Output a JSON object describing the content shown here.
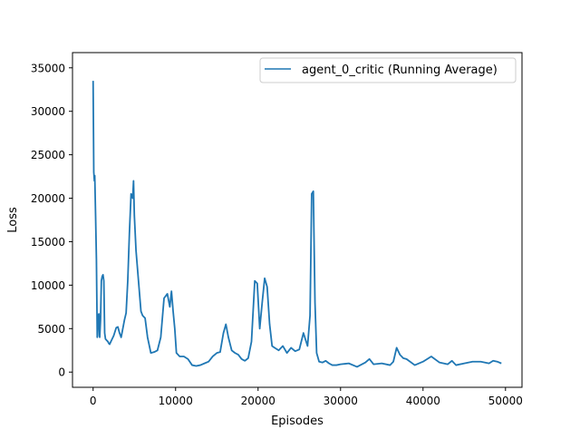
{
  "chart_data": {
    "type": "line",
    "title": "",
    "xlabel": "Episodes",
    "ylabel": "Loss",
    "xlim": [
      -2500,
      52000
    ],
    "ylim": [
      -1750,
      36750
    ],
    "xticks": [
      0,
      10000,
      20000,
      30000,
      40000,
      50000
    ],
    "xtick_labels": [
      "0",
      "10000",
      "20000",
      "30000",
      "40000",
      "50000"
    ],
    "yticks": [
      0,
      5000,
      10000,
      15000,
      20000,
      25000,
      30000,
      35000
    ],
    "ytick_labels": [
      "0",
      "5000",
      "10000",
      "15000",
      "20000",
      "25000",
      "30000",
      "35000"
    ],
    "grid": false,
    "legend_position": "upper right",
    "series": [
      {
        "name": "agent_0_critic (Running Average)",
        "color": "#1f77b4",
        "x": [
          0,
          80,
          150,
          200,
          300,
          400,
          500,
          550,
          600,
          700,
          800,
          900,
          1000,
          1100,
          1200,
          1300,
          1400,
          1500,
          1600,
          1700,
          1800,
          1900,
          2000,
          2200,
          2500,
          2800,
          3000,
          3200,
          3400,
          3600,
          3800,
          4000,
          4200,
          4400,
          4600,
          4800,
          4900,
          5000,
          5200,
          5500,
          5800,
          6000,
          6300,
          6600,
          7000,
          7400,
          7800,
          8200,
          8600,
          9000,
          9300,
          9500,
          9700,
          9900,
          10100,
          10500,
          11000,
          11500,
          12000,
          12500,
          13000,
          13500,
          14000,
          14500,
          15000,
          15400,
          15800,
          16100,
          16400,
          16800,
          17200,
          17600,
          18000,
          18400,
          18800,
          19200,
          19600,
          19900,
          20200,
          20500,
          20800,
          21100,
          21400,
          21700,
          22000,
          22500,
          23000,
          23500,
          24000,
          24500,
          25000,
          25500,
          26000,
          26300,
          26500,
          26700,
          26900,
          27100,
          27400,
          27800,
          28200,
          28600,
          29000,
          29500,
          30000,
          31000,
          32000,
          33000,
          33500,
          34000,
          35000,
          36000,
          36400,
          36800,
          37200,
          37600,
          38000,
          39000,
          40000,
          40500,
          41000,
          42000,
          43000,
          43500,
          44000,
          45000,
          46000,
          47000,
          48000,
          48500,
          49000,
          49500
        ],
        "y": [
          33500,
          23000,
          22000,
          22600,
          18000,
          13000,
          4000,
          4200,
          6500,
          6700,
          4000,
          6000,
          10500,
          11000,
          11200,
          10500,
          4500,
          3800,
          3700,
          3600,
          3500,
          3300,
          3200,
          3600,
          4200,
          5100,
          5200,
          4500,
          4000,
          5000,
          6000,
          6800,
          10500,
          16000,
          20500,
          20000,
          22000,
          18000,
          14000,
          10500,
          7000,
          6500,
          6200,
          4000,
          2200,
          2300,
          2500,
          4000,
          8500,
          9000,
          7500,
          9300,
          7000,
          5000,
          2200,
          1800,
          1800,
          1500,
          800,
          700,
          800,
          1000,
          1200,
          1800,
          2200,
          2300,
          4500,
          5500,
          4000,
          2500,
          2200,
          2000,
          1500,
          1300,
          1600,
          3500,
          10500,
          10200,
          5000,
          8000,
          10800,
          9800,
          5500,
          3000,
          2800,
          2500,
          3000,
          2200,
          2800,
          2400,
          2600,
          4500,
          3000,
          6500,
          20500,
          20800,
          8000,
          2200,
          1200,
          1100,
          1300,
          1000,
          800,
          800,
          900,
          1000,
          600,
          1100,
          1500,
          900,
          1000,
          800,
          1200,
          2800,
          2000,
          1600,
          1500,
          800,
          1200,
          1500,
          1800,
          1100,
          900,
          1300,
          800,
          1000,
          1200,
          1200,
          1000,
          1300,
          1200,
          1000
        ]
      }
    ]
  }
}
